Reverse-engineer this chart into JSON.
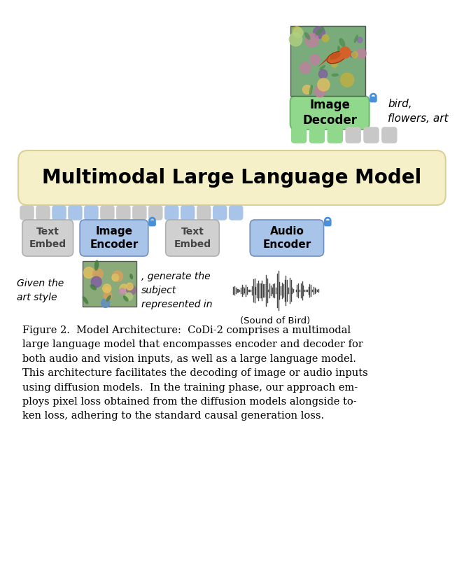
{
  "bg_color": "#ffffff",
  "mllm_box_color": "#f5f0c8",
  "mllm_text": "Multimodal Large Language Model",
  "image_decoder_color": "#90d88c",
  "image_encoder_color": "#a8c4e8",
  "audio_encoder_color": "#a8c4e8",
  "text_embed_color": "#d0d0d0",
  "token_green": "#90d88c",
  "token_blue": "#a8c4e8",
  "token_gray": "#c8c8c8",
  "caption_text": "Figure 2.  Model Architecture:  CoDi-2 comprises a multimodal\nlarge language model that encompasses encoder and decoder for\nboth audio and vision inputs, as well as a large language model.\nThis architecture facilitates the decoding of image or audio inputs\nusing diffusion models.  In the training phase, our approach em-\nploys pixel loss obtained from the diffusion models alongside to-\nken loss, adhering to the standard causal generation loss.",
  "lock_color": "#4a90d9",
  "bird_text": "bird,\nflowers, art",
  "given_text": "Given the\nart style",
  "generate_text": ", generate the\nsubject\nrepresented in",
  "sound_text": "(Sound of Bird)"
}
